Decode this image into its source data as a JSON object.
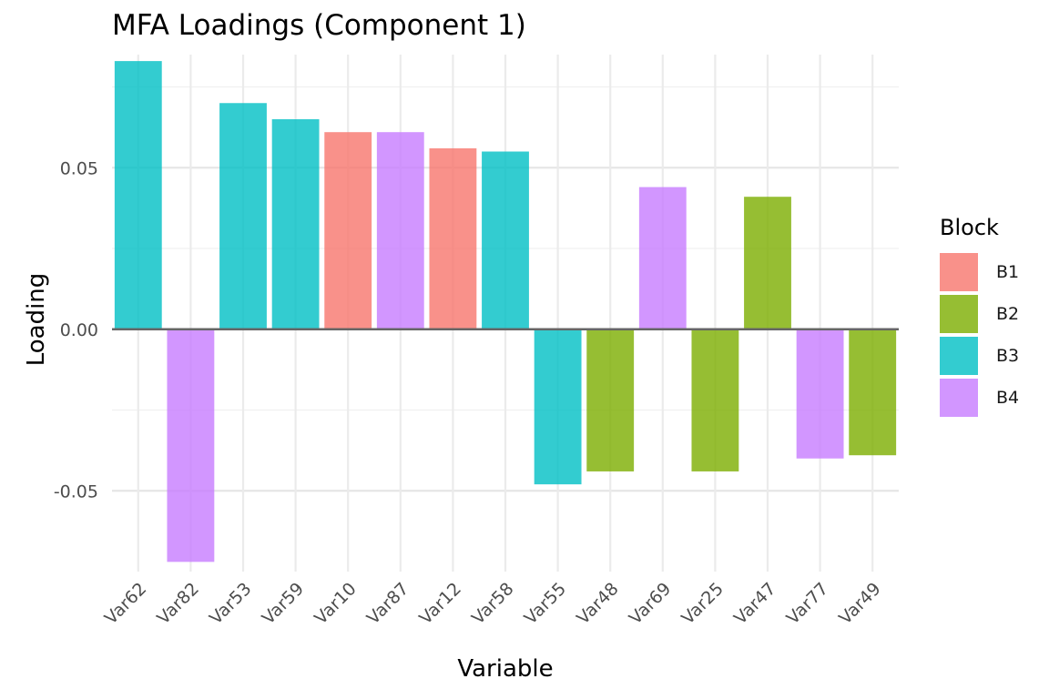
{
  "chart_data": {
    "type": "bar",
    "title": "MFA Loadings (Component 1)",
    "xlabel": "Variable",
    "ylabel": "Loading",
    "ylim": [
      -0.075,
      0.085
    ],
    "yticks": [
      -0.05,
      0.0,
      0.05
    ],
    "ytick_labels": [
      "-0.05",
      "0.00",
      "0.05"
    ],
    "grid": true,
    "legend": {
      "title": "Block",
      "position": "right",
      "entries": [
        "B1",
        "B2",
        "B3",
        "B4"
      ]
    },
    "colors": {
      "B1": "#F8766D",
      "B2": "#7CAE00",
      "B3": "#00BFC4",
      "B4": "#C77CFF"
    },
    "categories": [
      "Var62",
      "Var82",
      "Var53",
      "Var59",
      "Var10",
      "Var87",
      "Var12",
      "Var58",
      "Var55",
      "Var48",
      "Var69",
      "Var25",
      "Var47",
      "Var77",
      "Var49"
    ],
    "values": [
      0.083,
      -0.072,
      0.07,
      0.065,
      0.061,
      0.061,
      0.056,
      0.055,
      -0.048,
      -0.044,
      0.044,
      -0.044,
      0.041,
      -0.04,
      -0.039
    ],
    "blocks": [
      "B3",
      "B4",
      "B3",
      "B3",
      "B1",
      "B4",
      "B1",
      "B3",
      "B3",
      "B2",
      "B4",
      "B2",
      "B2",
      "B4",
      "B2"
    ]
  }
}
